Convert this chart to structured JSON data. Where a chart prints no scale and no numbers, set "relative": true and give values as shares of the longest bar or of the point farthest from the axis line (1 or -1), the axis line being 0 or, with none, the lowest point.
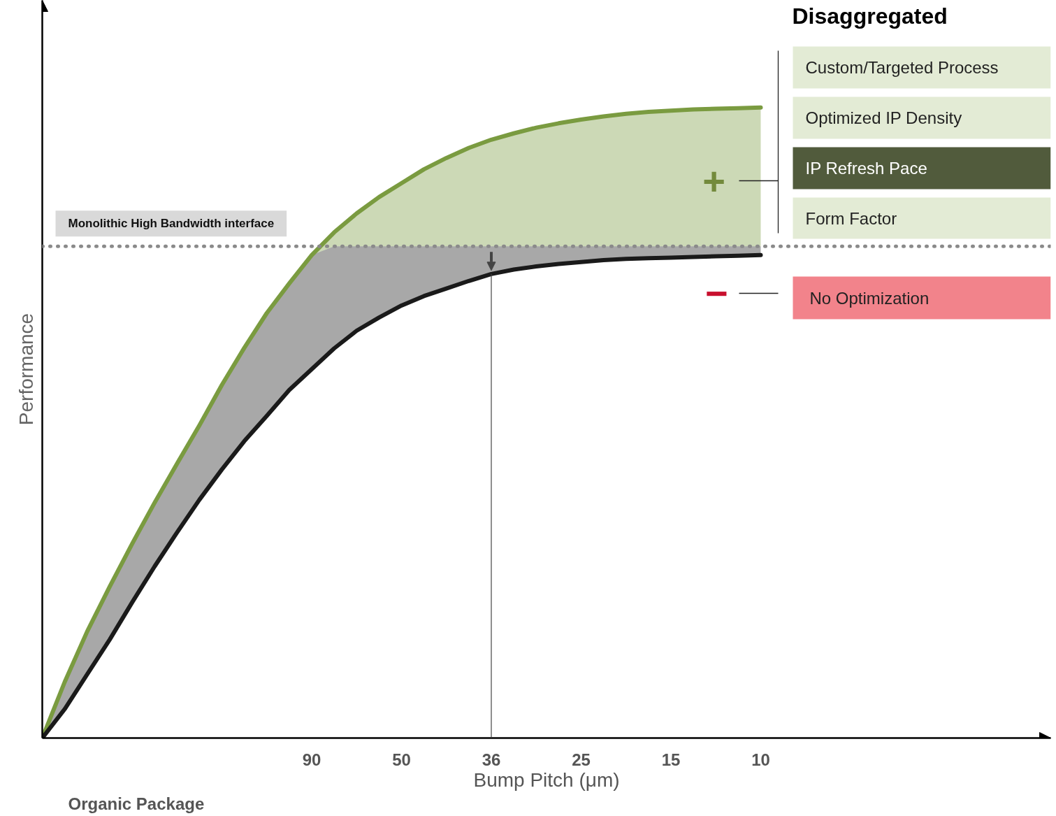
{
  "chart_data": {
    "type": "line",
    "relative": true,
    "xlabel": "Bump Pitch (μm)",
    "ylabel": "Performance",
    "categories": [
      null,
      null,
      null,
      null,
      null,
      null,
      null,
      null,
      null,
      null,
      null,
      null,
      "90",
      null,
      null,
      null,
      "50",
      null,
      null,
      null,
      "36",
      null,
      null,
      null,
      "25",
      null,
      null,
      null,
      "15",
      null,
      null,
      null,
      "10"
    ],
    "tick_labels": "x",
    "grid": false,
    "series": [
      {
        "color": "#7a9b40",
        "values": [
          0,
          0.089,
          0.169,
          0.24,
          0.308,
          0.373,
          0.435,
          0.496,
          0.56,
          0.619,
          0.674,
          0.721,
          0.766,
          0.802,
          0.832,
          0.858,
          0.88,
          0.902,
          0.92,
          0.936,
          0.949,
          0.959,
          0.968,
          0.975,
          0.981,
          0.986,
          0.99,
          0.993,
          0.995,
          0.997,
          0.998,
          0.999,
          1.0
        ],
        "lower": [
          null,
          null,
          null,
          null,
          null,
          null,
          null,
          null,
          null,
          null,
          null,
          null,
          0.766,
          0.78,
          0.78,
          0.78,
          0.78,
          0.78,
          0.78,
          0.78,
          0.78,
          0.78,
          0.78,
          0.78,
          0.78,
          0.78,
          0.78,
          0.78,
          0.78,
          0.78,
          0.78,
          0.78,
          0.78
        ],
        "upper": [
          null,
          null,
          null,
          null,
          null,
          null,
          null,
          null,
          null,
          null,
          null,
          null,
          0.766,
          0.802,
          0.832,
          0.858,
          0.88,
          0.902,
          0.92,
          0.936,
          0.949,
          0.959,
          0.968,
          0.975,
          0.981,
          0.986,
          0.99,
          0.993,
          0.995,
          0.997,
          0.998,
          0.999,
          1.0
        ]
      },
      {
        "color": "#1a1a1a",
        "values": [
          0,
          0.046,
          0.101,
          0.156,
          0.215,
          0.272,
          0.326,
          0.378,
          0.426,
          0.471,
          0.511,
          0.552,
          0.585,
          0.618,
          0.646,
          0.667,
          0.686,
          0.701,
          0.713,
          0.725,
          0.736,
          0.743,
          0.748,
          0.752,
          0.755,
          0.758,
          0.76,
          0.761,
          0.762,
          0.763,
          0.764,
          0.765,
          0.766
        ],
        "lower": [
          0,
          0.046,
          0.101,
          0.156,
          0.215,
          0.272,
          0.326,
          0.378,
          0.426,
          0.471,
          0.511,
          0.552,
          0.585,
          0.618,
          0.646,
          0.667,
          0.686,
          0.701,
          0.713,
          0.725,
          0.736,
          0.743,
          0.748,
          0.752,
          0.755,
          0.758,
          0.76,
          0.761,
          0.762,
          0.763,
          0.764,
          0.765,
          0.766
        ],
        "upper": [
          0,
          0.089,
          0.169,
          0.24,
          0.308,
          0.373,
          0.435,
          0.496,
          0.56,
          0.619,
          0.674,
          0.721,
          0.766,
          0.78,
          0.78,
          0.78,
          0.78,
          0.78,
          0.78,
          0.78,
          0.78,
          0.78,
          0.78,
          0.78,
          0.78,
          0.78,
          0.78,
          0.78,
          0.78,
          0.78,
          0.78,
          0.78,
          0.78
        ]
      }
    ],
    "ref_lines": [
      {
        "axis": "y",
        "value": 0.78,
        "label": "Monolithic High Bandwidth interface",
        "line_style": "dotted",
        "color": "#8a8a8a"
      },
      {
        "axis": "x",
        "value": "36",
        "color": "#444444"
      }
    ],
    "annotations": [
      "Disaggregated",
      "Custom/Targeted Process",
      "Optimized IP Density",
      "IP Refresh Pace",
      "Form Factor",
      "+",
      "No Optimization",
      "−",
      "Organic Package"
    ]
  }
}
